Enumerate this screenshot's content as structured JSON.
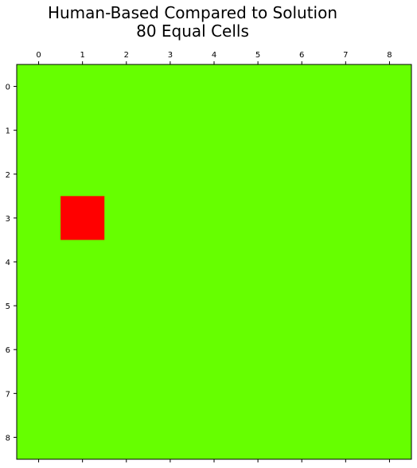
{
  "chart_data": {
    "type": "heatmap",
    "title_lines": [
      "Human-Based Compared to Solution",
      "80 Equal Cells"
    ],
    "x_ticks": [
      "0",
      "1",
      "2",
      "3",
      "4",
      "5",
      "6",
      "7",
      "8"
    ],
    "y_ticks": [
      "0",
      "1",
      "2",
      "3",
      "4",
      "5",
      "6",
      "7",
      "8"
    ],
    "x_axis_position": "top",
    "grid": false,
    "legend": "none",
    "rows": 9,
    "cols": 9,
    "cell_states": [
      [
        "equal",
        "equal",
        "equal",
        "equal",
        "equal",
        "equal",
        "equal",
        "equal",
        "equal"
      ],
      [
        "equal",
        "equal",
        "equal",
        "equal",
        "equal",
        "equal",
        "equal",
        "equal",
        "equal"
      ],
      [
        "equal",
        "equal",
        "equal",
        "equal",
        "equal",
        "equal",
        "equal",
        "equal",
        "equal"
      ],
      [
        "equal",
        "different",
        "equal",
        "equal",
        "equal",
        "equal",
        "equal",
        "equal",
        "equal"
      ],
      [
        "equal",
        "equal",
        "equal",
        "equal",
        "equal",
        "equal",
        "equal",
        "equal",
        "equal"
      ],
      [
        "equal",
        "equal",
        "equal",
        "equal",
        "equal",
        "equal",
        "equal",
        "equal",
        "equal"
      ],
      [
        "equal",
        "equal",
        "equal",
        "equal",
        "equal",
        "equal",
        "equal",
        "equal",
        "equal"
      ],
      [
        "equal",
        "equal",
        "equal",
        "equal",
        "equal",
        "equal",
        "equal",
        "equal",
        "equal"
      ],
      [
        "equal",
        "equal",
        "equal",
        "equal",
        "equal",
        "equal",
        "equal",
        "equal",
        "equal"
      ]
    ],
    "colors": {
      "equal": "#66ff00",
      "different": "#ff0000"
    }
  }
}
